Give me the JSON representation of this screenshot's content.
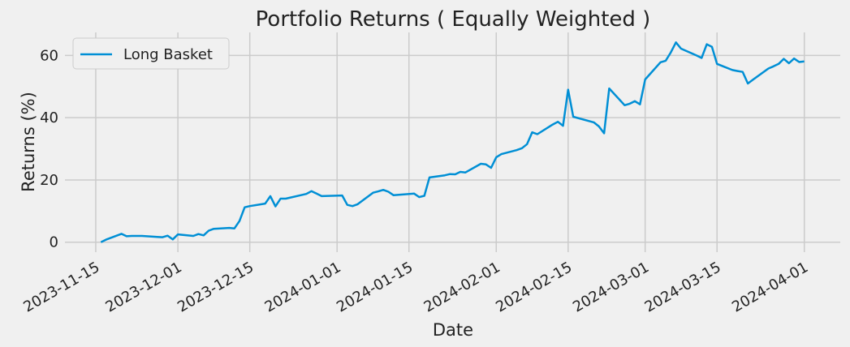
{
  "chart_data": {
    "type": "line",
    "title": "Portfolio Returns ( Equally Weighted )",
    "x_label": "Date",
    "y_label": "Returns (%)",
    "x": [
      "2023-11-16",
      "2023-11-17",
      "2023-11-20",
      "2023-11-21",
      "2023-11-22",
      "2023-11-24",
      "2023-11-27",
      "2023-11-28",
      "2023-11-29",
      "2023-11-30",
      "2023-12-01",
      "2023-12-04",
      "2023-12-05",
      "2023-12-06",
      "2023-12-07",
      "2023-12-08",
      "2023-12-11",
      "2023-12-12",
      "2023-12-13",
      "2023-12-14",
      "2023-12-15",
      "2023-12-18",
      "2023-12-19",
      "2023-12-20",
      "2023-12-21",
      "2023-12-22",
      "2023-12-26",
      "2023-12-27",
      "2023-12-28",
      "2023-12-29",
      "2024-01-02",
      "2024-01-03",
      "2024-01-04",
      "2024-01-05",
      "2024-01-08",
      "2024-01-09",
      "2024-01-10",
      "2024-01-11",
      "2024-01-12",
      "2024-01-16",
      "2024-01-17",
      "2024-01-18",
      "2024-01-19",
      "2024-01-22",
      "2024-01-23",
      "2024-01-24",
      "2024-01-25",
      "2024-01-26",
      "2024-01-29",
      "2024-01-30",
      "2024-01-31",
      "2024-02-01",
      "2024-02-02",
      "2024-02-05",
      "2024-02-06",
      "2024-02-07",
      "2024-02-08",
      "2024-02-09",
      "2024-02-12",
      "2024-02-13",
      "2024-02-14",
      "2024-02-15",
      "2024-02-16",
      "2024-02-20",
      "2024-02-21",
      "2024-02-22",
      "2024-02-23",
      "2024-02-26",
      "2024-02-27",
      "2024-02-28",
      "2024-02-29",
      "2024-03-01",
      "2024-03-04",
      "2024-03-05",
      "2024-03-06",
      "2024-03-07",
      "2024-03-08",
      "2024-03-11",
      "2024-03-12",
      "2024-03-13",
      "2024-03-14",
      "2024-03-15",
      "2024-03-18",
      "2024-03-19",
      "2024-03-20",
      "2024-03-21",
      "2024-03-22",
      "2024-03-25",
      "2024-03-26",
      "2024-03-27",
      "2024-03-28",
      "2024-03-29",
      "2024-03-30",
      "2024-03-31",
      "2024-04-01"
    ],
    "series": [
      {
        "name": "Long Basket",
        "color": "#008fd5",
        "values": [
          0,
          0.8,
          2.7,
          1.9,
          2.0,
          2.0,
          1.7,
          1.6,
          2.1,
          0.9,
          2.5,
          2.0,
          2.6,
          2.2,
          3.7,
          4.3,
          4.6,
          4.4,
          6.8,
          11.2,
          11.6,
          12.4,
          14.8,
          11.5,
          14.0,
          14.0,
          15.5,
          16.4,
          15.6,
          14.8,
          15.0,
          12.0,
          11.6,
          12.2,
          15.9,
          16.3,
          16.8,
          16.2,
          15.1,
          15.6,
          14.5,
          14.9,
          20.8,
          21.5,
          21.9,
          21.8,
          22.6,
          22.4,
          25.2,
          25.0,
          23.9,
          27.3,
          28.3,
          29.6,
          30.2,
          31.5,
          35.3,
          34.7,
          37.8,
          38.7,
          37.4,
          49.0,
          40.3,
          38.5,
          37.2,
          35.0,
          49.4,
          44.0,
          44.5,
          45.3,
          44.3,
          52.3,
          57.8,
          58.3,
          61.0,
          64.2,
          62.2,
          60.0,
          59.2,
          63.6,
          62.8,
          57.3,
          55.3,
          55.0,
          54.7,
          51.0,
          52.2,
          55.8,
          56.5,
          57.3,
          58.9,
          57.5,
          59.0,
          57.9,
          58.1
        ]
      }
    ],
    "xlim": [
      "2023-11-09",
      "2024-04-08"
    ],
    "xticks": [
      "2023-11-15",
      "2023-12-01",
      "2023-12-15",
      "2024-01-01",
      "2024-01-15",
      "2024-02-01",
      "2024-02-15",
      "2024-03-01",
      "2024-03-15",
      "2024-04-01"
    ],
    "ylim": [
      -3.2,
      67.4
    ],
    "yticks": [
      0,
      20,
      40,
      60
    ],
    "grid": true,
    "legend": "upper left"
  }
}
